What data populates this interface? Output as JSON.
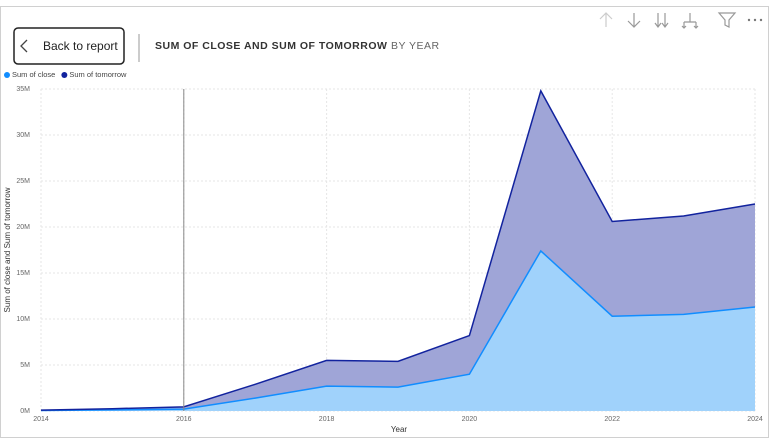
{
  "header": {
    "back_button": "Back to report"
  },
  "chart_data": {
    "type": "stacked_area",
    "title": "SUM OF CLOSE AND SUM OF TOMORROW",
    "subtitle": "BY YEAR",
    "x_label": "Year",
    "y_label": "Sum of close and Sum of tomorrow",
    "x": [
      2014,
      2015,
      2016,
      2017,
      2018,
      2019,
      2020,
      2021,
      2022,
      2023,
      2024
    ],
    "series": [
      {
        "name": "Sum of close",
        "color": "#118DFF",
        "fill": "#a0d2fb",
        "values": [
          0.05,
          0.12,
          0.2,
          1.4,
          2.7,
          2.6,
          4.0,
          17.4,
          10.3,
          10.5,
          11.3
        ]
      },
      {
        "name": "Sum of tomorrow",
        "color": "#12239E",
        "fill": "#9fa5d7",
        "values": [
          0.05,
          0.13,
          0.25,
          1.5,
          2.8,
          2.8,
          4.2,
          17.4,
          10.3,
          10.7,
          11.2
        ]
      }
    ],
    "xlim": [
      2014,
      2024
    ],
    "xticks": [
      2014,
      2016,
      2018,
      2020,
      2022,
      2024
    ],
    "ylim": [
      0,
      35
    ],
    "yticks": [
      {
        "value": 0,
        "label": "0M"
      },
      {
        "value": 5,
        "label": "5M"
      },
      {
        "value": 10,
        "label": "10M"
      },
      {
        "value": 15,
        "label": "15M"
      },
      {
        "value": 20,
        "label": "20M"
      },
      {
        "value": 25,
        "label": "25M"
      },
      {
        "value": 30,
        "label": "30M"
      },
      {
        "value": 35,
        "label": "35M"
      }
    ],
    "grid": true,
    "legend": "top-left"
  }
}
